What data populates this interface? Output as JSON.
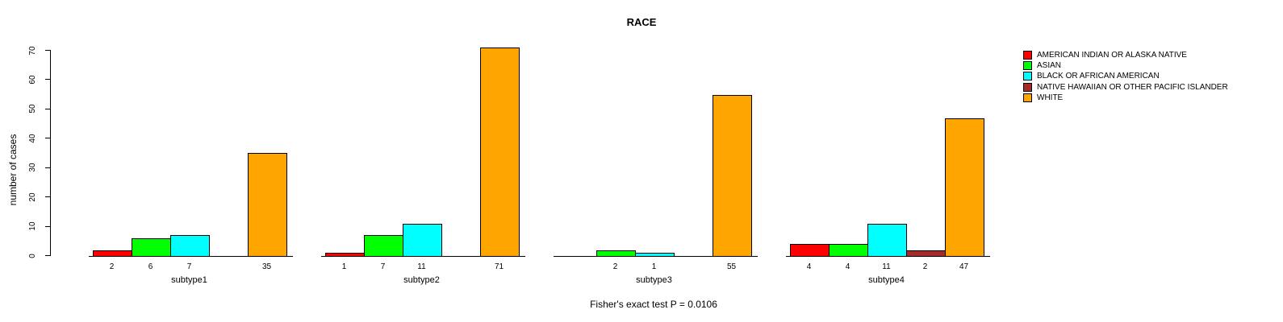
{
  "title": "RACE",
  "caption": "Fisher's exact test P = 0.0106",
  "chart_data": {
    "type": "bar",
    "title": "RACE",
    "xlabel": "",
    "ylabel": "number of cases",
    "ylim": [
      0,
      70
    ],
    "yticks": [
      0,
      10,
      20,
      30,
      40,
      50,
      60,
      70
    ],
    "grid": false,
    "legend_position": "top-right",
    "categories": [
      "subtype1",
      "subtype2",
      "subtype3",
      "subtype4"
    ],
    "series": [
      {
        "name": "AMERICAN INDIAN OR ALASKA NATIVE",
        "color": "#FF0000",
        "values": [
          2,
          1,
          0,
          4
        ]
      },
      {
        "name": "ASIAN",
        "color": "#00FF00",
        "values": [
          6,
          7,
          2,
          4
        ]
      },
      {
        "name": "BLACK OR AFRICAN AMERICAN",
        "color": "#00FFFF",
        "values": [
          7,
          11,
          1,
          11
        ]
      },
      {
        "name": "NATIVE HAWAIIAN OR OTHER PACIFIC ISLANDER",
        "color": "#A52A2A",
        "values": [
          0,
          0,
          0,
          2
        ]
      },
      {
        "name": "WHITE",
        "color": "#FFA500",
        "values": [
          35,
          71,
          55,
          47
        ]
      }
    ],
    "annotation": "Fisher's exact test P = 0.0106"
  }
}
